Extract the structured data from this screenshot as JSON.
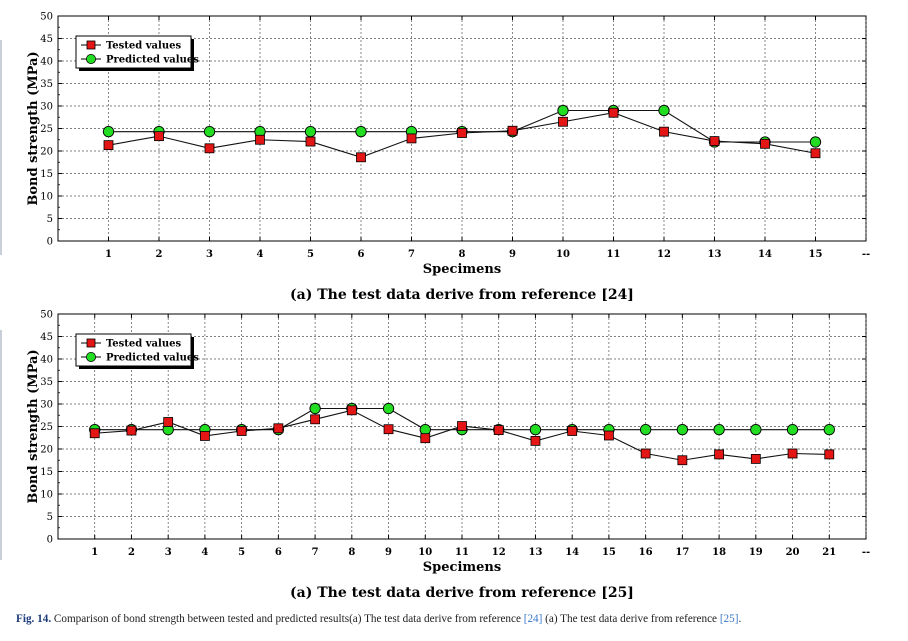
{
  "caption": {
    "label": "Fig. 14.",
    "text_a": " Comparison of bond strength between tested and predicted results(a) The test data derive from reference ",
    "ref_a": "[24]",
    "text_b": " (a) The test data derive from reference ",
    "ref_b": "[25]",
    "end": "."
  },
  "colors": {
    "tested": "#e31515",
    "predicted": "#22dd22",
    "line": "#111111",
    "grid": "#555555"
  },
  "chart_data": [
    {
      "type": "line",
      "subtitle": "(a) The test data derive from reference [24]",
      "xlabel": "Specimens",
      "ylabel": "Bond strength (MPa)",
      "xticks": [
        "1",
        "2",
        "3",
        "4",
        "5",
        "6",
        "7",
        "8",
        "9",
        "10",
        "11",
        "12",
        "13",
        "14",
        "15",
        "--"
      ],
      "xlim": [
        0,
        16
      ],
      "ylim": [
        0,
        50
      ],
      "yticks": [
        0,
        5,
        10,
        15,
        20,
        25,
        30,
        35,
        40,
        45,
        50
      ],
      "grid": true,
      "legend_position": "top-left",
      "x": [
        1,
        2,
        3,
        4,
        5,
        6,
        7,
        8,
        9,
        10,
        11,
        12,
        13,
        14,
        15
      ],
      "series": [
        {
          "name": "Tested values",
          "marker": "square",
          "values": [
            21.3,
            23.3,
            20.6,
            22.5,
            22.1,
            18.6,
            22.8,
            24.0,
            24.5,
            26.5,
            28.5,
            24.3,
            22.2,
            21.6,
            19.5
          ]
        },
        {
          "name": "Predicted values",
          "marker": "circle",
          "values": [
            24.3,
            24.3,
            24.3,
            24.3,
            24.3,
            24.3,
            24.3,
            24.3,
            24.3,
            29.0,
            29.0,
            29.0,
            22.0,
            22.0,
            22.0
          ]
        }
      ]
    },
    {
      "type": "line",
      "subtitle": "(a) The test data derive from reference [25]",
      "xlabel": "Specimens",
      "ylabel": "Bond strength (MPa)",
      "xticks": [
        "1",
        "2",
        "3",
        "4",
        "5",
        "6",
        "7",
        "8",
        "9",
        "10",
        "11",
        "12",
        "13",
        "14",
        "15",
        "16",
        "17",
        "18",
        "19",
        "20",
        "21",
        "--"
      ],
      "xlim": [
        0,
        22
      ],
      "ylim": [
        0,
        50
      ],
      "yticks": [
        0,
        5,
        10,
        15,
        20,
        25,
        30,
        35,
        40,
        45,
        50
      ],
      "grid": true,
      "legend_position": "top-left",
      "x": [
        1,
        2,
        3,
        4,
        5,
        6,
        7,
        8,
        9,
        10,
        11,
        12,
        13,
        14,
        15,
        16,
        17,
        18,
        19,
        20,
        21
      ],
      "series": [
        {
          "name": "Tested values",
          "marker": "square",
          "values": [
            23.5,
            24.1,
            26.0,
            22.9,
            24.0,
            24.6,
            26.6,
            28.6,
            24.4,
            22.4,
            25.1,
            24.2,
            21.8,
            24.0,
            23.0,
            19.0,
            17.5,
            18.8,
            17.8,
            19.0,
            18.8
          ]
        },
        {
          "name": "Predicted values",
          "marker": "circle",
          "values": [
            24.3,
            24.3,
            24.3,
            24.3,
            24.3,
            24.3,
            29.0,
            29.0,
            29.0,
            24.3,
            24.3,
            24.3,
            24.3,
            24.3,
            24.3,
            24.3,
            24.3,
            24.3,
            24.3,
            24.3,
            24.3
          ]
        }
      ]
    }
  ]
}
